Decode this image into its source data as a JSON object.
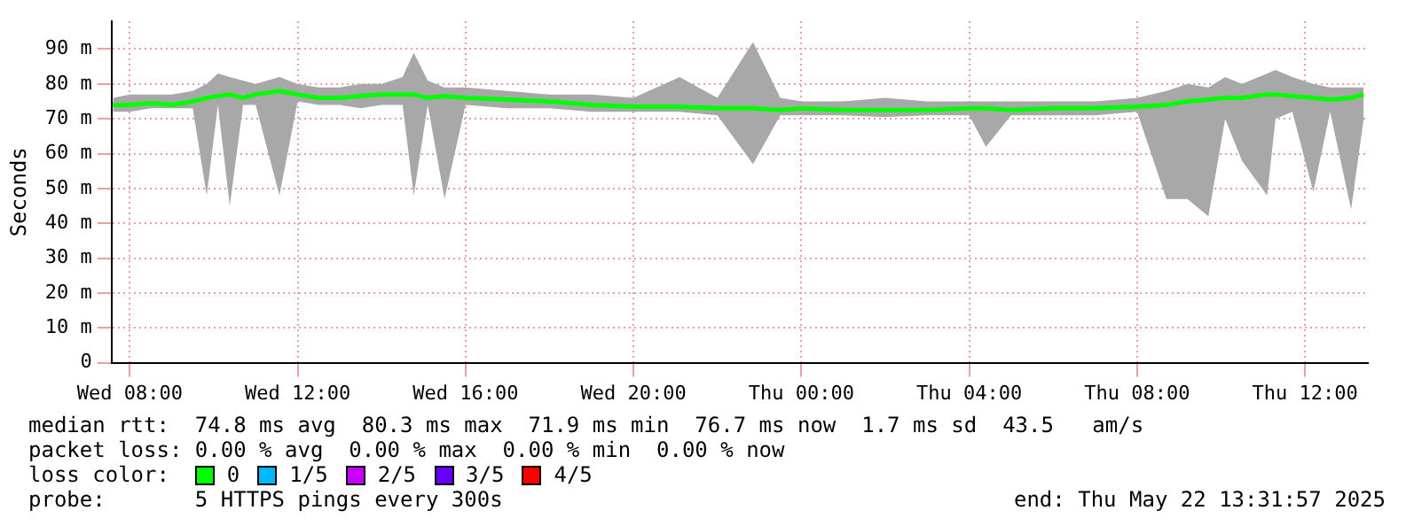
{
  "chart_data": {
    "type": "line",
    "ylabel": "Seconds",
    "legend_title": "loss color:",
    "legend": "bottom",
    "grid": true,
    "marker": "none",
    "line_style": "solid",
    "x": [
      "2025-05-21T07:36",
      "2025-05-21T08:00",
      "2025-05-21T08:30",
      "2025-05-21T09:00",
      "2025-05-21T09:30",
      "2025-05-21T09:50",
      "2025-05-21T10:06",
      "2025-05-21T10:23",
      "2025-05-21T10:42",
      "2025-05-21T11:00",
      "2025-05-21T11:34",
      "2025-05-21T12:00",
      "2025-05-21T12:30",
      "2025-05-21T13:00",
      "2025-05-21T13:30",
      "2025-05-21T14:00",
      "2025-05-21T14:30",
      "2025-05-21T14:46",
      "2025-05-21T15:06",
      "2025-05-21T15:30",
      "2025-05-21T16:00",
      "2025-05-21T17:00",
      "2025-05-21T18:00",
      "2025-05-21T19:00",
      "2025-05-21T20:00",
      "2025-05-21T21:06",
      "2025-05-21T22:00",
      "2025-05-21T22:51",
      "2025-05-21T23:30",
      "2025-05-22T00:00",
      "2025-05-22T01:00",
      "2025-05-22T02:00",
      "2025-05-22T03:00",
      "2025-05-22T04:00",
      "2025-05-22T04:24",
      "2025-05-22T05:00",
      "2025-05-22T06:00",
      "2025-05-22T07:00",
      "2025-05-22T08:00",
      "2025-05-22T08:42",
      "2025-05-22T09:12",
      "2025-05-22T09:42",
      "2025-05-22T10:06",
      "2025-05-22T10:30",
      "2025-05-22T11:06",
      "2025-05-22T11:18",
      "2025-05-22T11:42",
      "2025-05-22T12:12",
      "2025-05-22T12:36",
      "2025-05-22T13:06",
      "2025-05-22T13:24"
    ],
    "xlim": [
      "2025-05-21T07:34",
      "2025-05-22T13:30"
    ],
    "xticks": [
      {
        "value": "2025-05-21T08:00",
        "label": "Wed 08:00"
      },
      {
        "value": "2025-05-21T12:00",
        "label": "Wed 12:00"
      },
      {
        "value": "2025-05-21T16:00",
        "label": "Wed 16:00"
      },
      {
        "value": "2025-05-21T20:00",
        "label": "Wed 20:00"
      },
      {
        "value": "2025-05-22T00:00",
        "label": "Thu 00:00"
      },
      {
        "value": "2025-05-22T04:00",
        "label": "Thu 04:00"
      },
      {
        "value": "2025-05-22T08:00",
        "label": "Thu 08:00"
      },
      {
        "value": "2025-05-22T12:00",
        "label": "Thu 12:00"
      }
    ],
    "ylim": [
      0,
      98
    ],
    "yticks": [
      0,
      {
        "value": 10,
        "label": "10 m"
      },
      {
        "value": 20,
        "label": "20 m"
      },
      {
        "value": 30,
        "label": "30 m"
      },
      {
        "value": 40,
        "label": "40 m"
      },
      {
        "value": 50,
        "label": "50 m"
      },
      {
        "value": 60,
        "label": "60 m"
      },
      {
        "value": 70,
        "label": "70 m"
      },
      {
        "value": 80,
        "label": "80 m"
      },
      {
        "value": 90,
        "label": "90 m"
      }
    ],
    "series": [
      {
        "name": "0",
        "color": "#00ff00",
        "values": [
          74,
          74,
          74.5,
          74,
          75,
          76,
          76.5,
          77,
          76,
          77,
          78,
          77,
          76,
          76,
          76.5,
          77,
          77,
          77,
          76,
          76.5,
          76,
          75.5,
          75,
          74,
          73.5,
          73.5,
          73,
          73,
          72.5,
          73,
          72.5,
          72.5,
          72.5,
          73,
          73,
          72.5,
          73,
          73,
          73.5,
          74,
          75,
          75.5,
          76,
          76,
          77,
          77,
          76.5,
          76,
          75.5,
          76,
          77
        ],
        "lower": [
          72,
          72,
          73,
          73,
          73,
          48,
          74,
          45,
          74,
          74,
          48,
          75,
          74,
          74,
          73,
          74,
          74,
          48,
          74,
          47,
          74,
          73,
          73,
          72,
          72,
          72,
          71,
          57,
          71,
          71,
          71,
          70.5,
          71,
          71,
          62,
          71,
          71,
          71,
          72,
          47,
          47,
          42,
          70,
          58,
          48,
          70,
          72,
          49,
          72,
          44,
          70
        ],
        "upper": [
          76,
          77,
          77,
          77,
          78,
          80,
          83,
          82,
          81,
          80,
          82,
          80,
          79,
          79,
          80,
          80,
          82,
          89,
          81,
          79,
          79,
          78,
          77,
          77,
          76,
          82,
          76,
          92,
          76,
          75,
          75,
          76,
          75,
          75,
          75,
          75,
          75,
          75,
          76,
          78,
          80,
          79,
          82,
          80,
          83,
          84,
          82,
          80,
          79,
          79,
          79
        ]
      },
      {
        "name": "1/5",
        "color": "#00b8ff",
        "values": [
          null,
          null,
          null,
          null,
          null,
          null,
          null,
          null,
          null,
          null,
          null,
          null,
          null,
          null,
          null,
          null,
          null,
          null,
          null,
          null,
          null,
          null,
          null,
          null,
          null,
          null,
          null,
          null,
          null,
          null,
          null,
          null,
          null,
          null,
          null,
          null,
          null,
          null,
          null,
          null,
          null,
          null,
          null,
          null,
          null,
          null,
          null,
          null,
          null,
          null,
          null
        ]
      },
      {
        "name": "2/5",
        "color": "#c800ff",
        "values": [
          null,
          null,
          null,
          null,
          null,
          null,
          null,
          null,
          null,
          null,
          null,
          null,
          null,
          null,
          null,
          null,
          null,
          null,
          null,
          null,
          null,
          null,
          null,
          null,
          null,
          null,
          null,
          null,
          null,
          null,
          null,
          null,
          null,
          null,
          null,
          null,
          null,
          null,
          null,
          null,
          null,
          null,
          null,
          null,
          null,
          null,
          null,
          null,
          null,
          null,
          null
        ]
      },
      {
        "name": "3/5",
        "color": "#6400ff",
        "values": [
          null,
          null,
          null,
          null,
          null,
          null,
          null,
          null,
          null,
          null,
          null,
          null,
          null,
          null,
          null,
          null,
          null,
          null,
          null,
          null,
          null,
          null,
          null,
          null,
          null,
          null,
          null,
          null,
          null,
          null,
          null,
          null,
          null,
          null,
          null,
          null,
          null,
          null,
          null,
          null,
          null,
          null,
          null,
          null,
          null,
          null,
          null,
          null,
          null,
          null,
          null
        ]
      },
      {
        "name": "4/5",
        "color": "#ff0000",
        "values": [
          null,
          null,
          null,
          null,
          null,
          null,
          null,
          null,
          null,
          null,
          null,
          null,
          null,
          null,
          null,
          null,
          null,
          null,
          null,
          null,
          null,
          null,
          null,
          null,
          null,
          null,
          null,
          null,
          null,
          null,
          null,
          null,
          null,
          null,
          null,
          null,
          null,
          null,
          null,
          null,
          null,
          null,
          null,
          null,
          null,
          null,
          null,
          null,
          null,
          null,
          null
        ]
      }
    ],
    "annotations": [
      "median rtt:  74.8 ms avg  80.3 ms max  71.9 ms min  76.7 ms now  1.7 ms sd  43.5   am/s",
      "packet loss: 0.00 % avg  0.00 % max  0.00 % min  0.00 % now",
      "probe:       5 HTTPS pings every 300s",
      "end: Thu May 22 13:31:57 2025"
    ]
  }
}
